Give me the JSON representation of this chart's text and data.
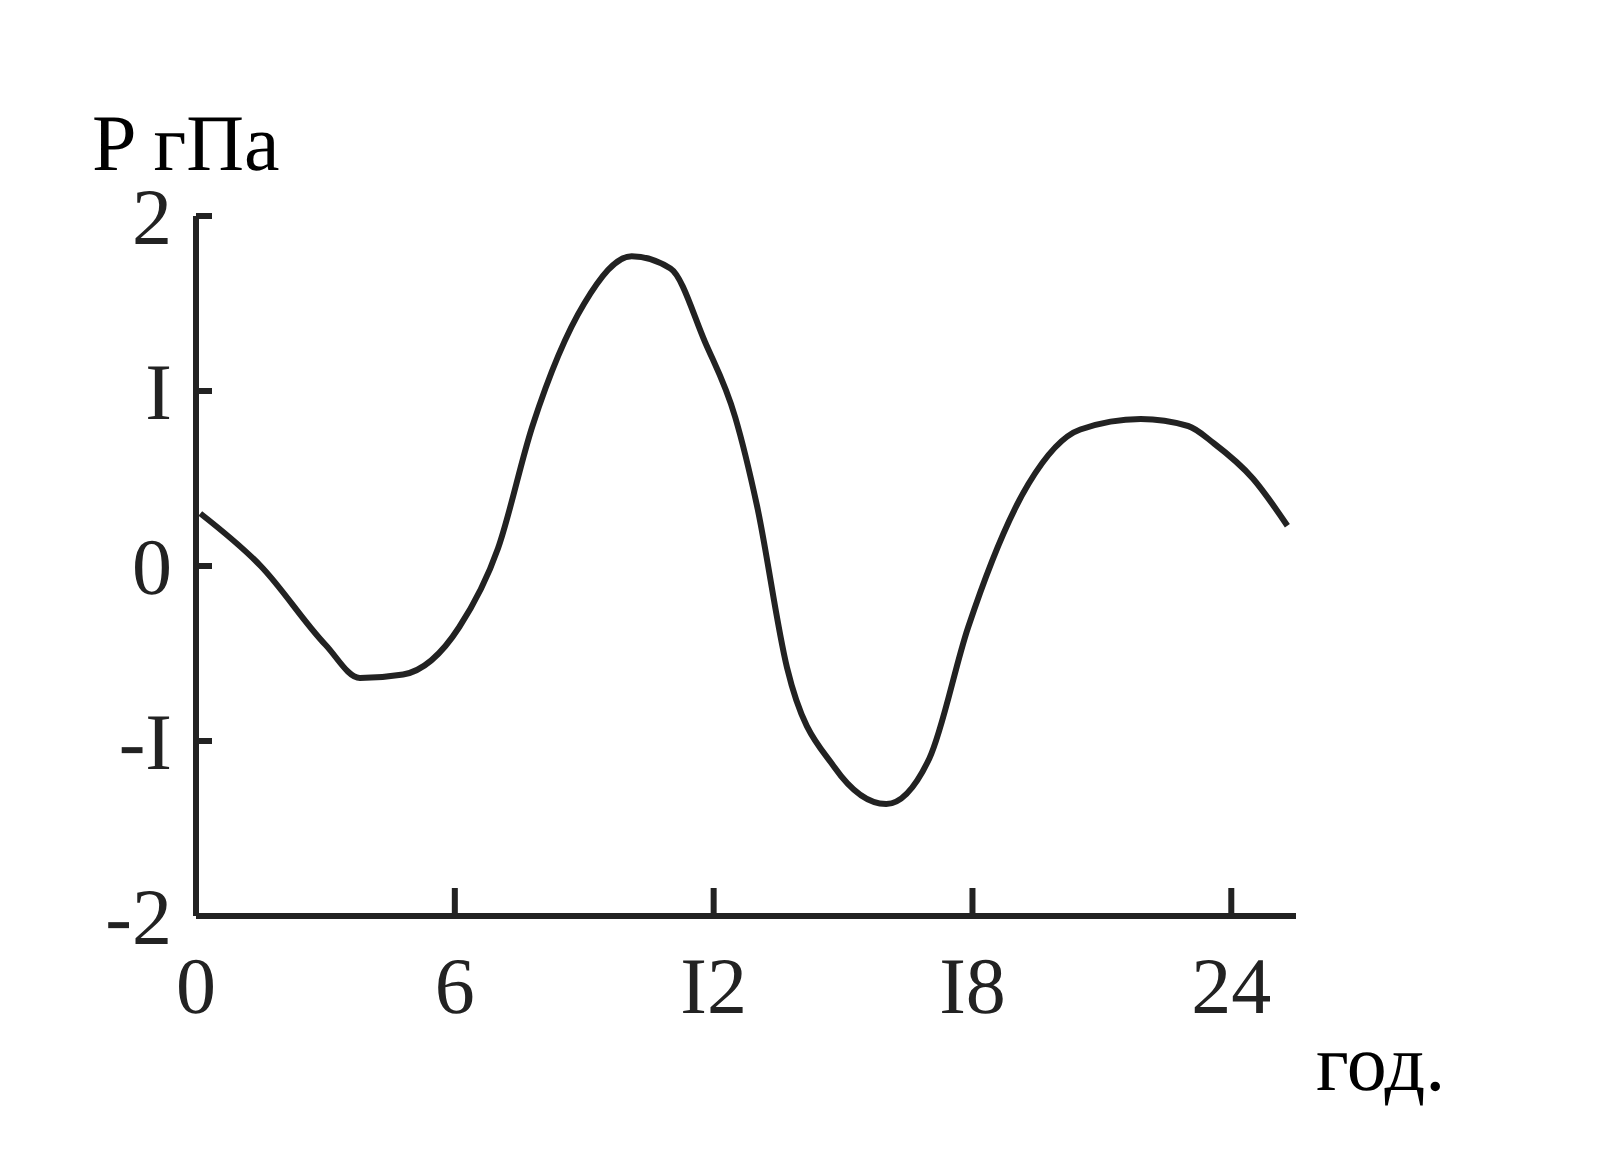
{
  "chart_data": {
    "type": "line",
    "ylabel": "P гПа",
    "xlabel": "год.",
    "x": [
      0.1,
      1.5,
      3.0,
      3.8,
      4.8,
      6.1,
      7.0,
      7.8,
      9.0,
      10.1,
      11.0,
      11.8,
      12.5,
      13.0,
      13.7,
      14.8,
      16.0,
      17.0,
      17.9,
      19.3,
      20.5,
      21.9,
      23.0,
      23.6,
      24.5,
      25.3
    ],
    "series": [
      {
        "color": "#222222",
        "values": [
          0.3,
          0.0,
          -0.45,
          -0.64,
          -0.62,
          -0.35,
          0.1,
          0.8,
          1.5,
          1.77,
          1.7,
          1.28,
          0.85,
          0.35,
          -0.58,
          -1.15,
          -1.36,
          -1.1,
          -0.35,
          0.47,
          0.78,
          0.84,
          0.8,
          0.7,
          0.5,
          0.23
        ]
      }
    ],
    "xlim": [
      0,
      25.5
    ],
    "ylim": [
      -2,
      2
    ],
    "xticks": [
      0,
      6,
      {
        "value": 12,
        "label": "I2"
      },
      {
        "value": 18,
        "label": "I8"
      },
      24
    ],
    "yticks": [
      -2,
      {
        "value": -1,
        "label": "-I"
      },
      0,
      {
        "value": 1,
        "label": "I"
      },
      2
    ],
    "grid": false,
    "legend": false,
    "marker": "none",
    "line_style": "solid"
  }
}
